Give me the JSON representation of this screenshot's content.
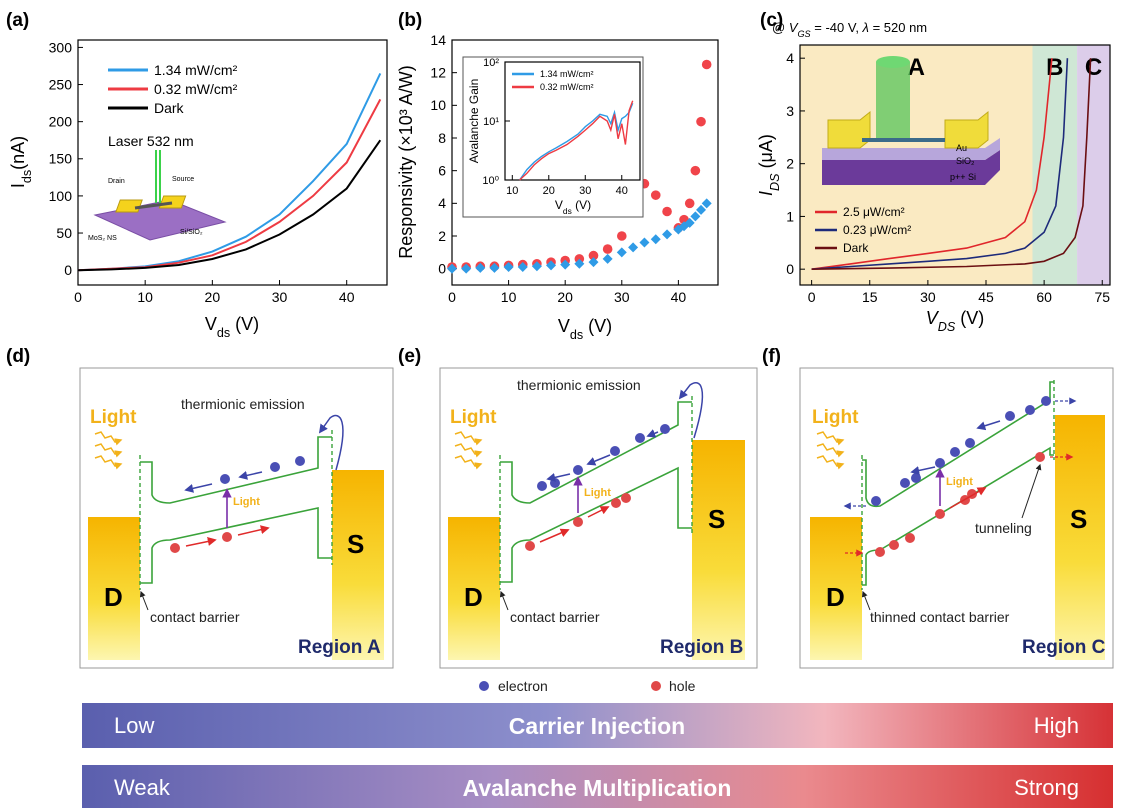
{
  "panel_labels": [
    "(a)",
    "(b)",
    "(c)",
    "(d)",
    "(e)",
    "(f)"
  ],
  "chart_data": [
    {
      "type": "line",
      "xlabel": [
        {
          "text": "V"
        },
        {
          "text": "ds",
          "sub": true
        },
        {
          "text": " (V)"
        }
      ],
      "ylabel": [
        {
          "text": "I"
        },
        {
          "text": "ds",
          "sub": true
        },
        {
          "text": "(nA)"
        }
      ],
      "x": [
        0,
        5,
        10,
        15,
        20,
        25,
        30,
        35,
        40,
        45
      ],
      "series": [
        {
          "name": "1.34 mW/cm²",
          "color": "#2f9be6",
          "values": [
            0,
            2,
            5,
            12,
            25,
            45,
            75,
            120,
            170,
            265
          ]
        },
        {
          "name": "0.32 mW/cm²",
          "color": "#ee3b43",
          "values": [
            0,
            2,
            4,
            10,
            20,
            38,
            65,
            100,
            145,
            230
          ]
        },
        {
          "name": "Dark",
          "color": "#000000",
          "values": [
            0,
            1,
            3,
            7,
            15,
            28,
            48,
            75,
            110,
            175
          ]
        }
      ],
      "xlim": [
        0,
        46
      ],
      "xticks": [
        0,
        10,
        20,
        30,
        40
      ],
      "ylim": [
        -20,
        310
      ],
      "yticks": [
        0,
        50,
        100,
        150,
        200,
        250,
        300
      ],
      "legend": "upper left",
      "device_labels": {
        "laser": "Laser 532 nm",
        "drain": "Drain",
        "source": "Source",
        "channel": "MoS₂ NS",
        "substrate": "Si/SiO₂"
      }
    },
    {
      "type": "scatter",
      "xlabel": [
        {
          "text": "V"
        },
        {
          "text": "ds",
          "sub": true
        },
        {
          "text": " (V)"
        }
      ],
      "ylabel": [
        {
          "text": "Responsivity (×10³ A/W)"
        }
      ],
      "x": [
        0,
        2.5,
        5,
        7.5,
        10,
        12.5,
        15,
        17.5,
        20,
        22.5,
        25,
        27.5,
        30,
        32,
        34,
        36,
        38,
        40,
        41,
        42,
        43,
        44,
        45
      ],
      "series": [
        {
          "color": "#f0444a",
          "marker": "circle",
          "values": [
            0.1,
            0.1,
            0.15,
            0.15,
            0.2,
            0.25,
            0.3,
            0.4,
            0.5,
            0.6,
            0.8,
            1.2,
            2.0,
            4.2,
            5.2,
            4.5,
            3.5,
            2.5,
            3,
            4,
            6,
            9,
            12.5
          ]
        },
        {
          "color": "#2f9be6",
          "marker": "diamond",
          "values": [
            0,
            0,
            0.05,
            0.05,
            0.1,
            0.1,
            0.15,
            0.2,
            0.25,
            0.3,
            0.4,
            0.6,
            1.0,
            1.3,
            1.6,
            1.8,
            2.1,
            2.4,
            2.6,
            2.8,
            3.2,
            3.6,
            4
          ]
        }
      ],
      "xlim": [
        0,
        47
      ],
      "xticks": [
        0,
        10,
        20,
        30,
        40
      ],
      "ylim": [
        -1,
        14
      ],
      "yticks": [
        0,
        2,
        4,
        6,
        8,
        10,
        12,
        14
      ],
      "inset": {
        "type": "line",
        "xlabel": [
          {
            "text": "V"
          },
          {
            "text": "ds",
            "sub": true
          },
          {
            "text": " (V)"
          }
        ],
        "ylabel": [
          {
            "text": "Avalanche Gain"
          }
        ],
        "x": [
          12,
          14,
          16,
          18,
          20,
          22,
          25,
          28,
          30,
          32,
          34,
          36,
          37,
          38,
          39,
          40,
          41,
          42,
          43
        ],
        "series": [
          {
            "name": "1.34 mW/cm²",
            "color": "#2f9be6",
            "values": [
              1,
              1.5,
              2,
              2.5,
              3,
              3.5,
              4.5,
              6,
              8,
              10,
              13,
              12,
              9,
              14,
              7,
              11,
              12,
              14,
              20
            ]
          },
          {
            "name": "0.32 mW/cm²",
            "color": "#ee3b43",
            "values": [
              1,
              1.3,
              1.8,
              2.3,
              2.8,
              3.2,
              4,
              5.5,
              7,
              9,
              12,
              10,
              7,
              13,
              5,
              9,
              4,
              15,
              22
            ]
          }
        ],
        "log_y": true,
        "xlim": [
          8,
          45
        ],
        "xticks": [
          10,
          20,
          30,
          40
        ],
        "ylim": [
          1,
          100
        ],
        "yticks": [
          {
            "value": 1,
            "label": "10⁰"
          },
          {
            "value": 10,
            "label": "10¹"
          },
          {
            "value": 100,
            "label": "10²"
          }
        ],
        "legend": "upper left"
      }
    },
    {
      "type": "line",
      "title": [
        {
          "text": "@ "
        },
        {
          "text": "V",
          "italic": true
        },
        {
          "text": "GS",
          "sub": true,
          "italic": true
        },
        {
          "text": " = -40 V, "
        },
        {
          "text": "λ",
          "italic": true
        },
        {
          "text": " = 520 nm"
        }
      ],
      "xlabel": [
        {
          "text": "V",
          "italic": true
        },
        {
          "text": "DS",
          "sub": true,
          "italic": true
        },
        {
          "text": " (V)"
        }
      ],
      "ylabel": [
        {
          "text": "I",
          "italic": true
        },
        {
          "text": "DS",
          "sub": true,
          "italic": true
        },
        {
          "text": " (μA)"
        }
      ],
      "regions": [
        {
          "label": "A",
          "range": [
            -3,
            57
          ],
          "color": "#faeac2"
        },
        {
          "label": "B",
          "range": [
            57,
            68.5
          ],
          "color": "#cfe7d5"
        },
        {
          "label": "C",
          "range": [
            68.5,
            77
          ],
          "color": "#dccdea"
        }
      ],
      "series": [
        {
          "name": "2.5 μW/cm²",
          "color": "#e0262b",
          "x": [
            0,
            10,
            20,
            30,
            40,
            50,
            55,
            58,
            60,
            62
          ],
          "values": [
            0,
            0.1,
            0.2,
            0.3,
            0.4,
            0.6,
            0.9,
            1.5,
            2.5,
            4
          ]
        },
        {
          "name": "0.23 μW/cm²",
          "color": "#1d2a7a",
          "x": [
            0,
            10,
            20,
            30,
            40,
            50,
            55,
            60,
            63,
            65,
            66
          ],
          "values": [
            0,
            0.05,
            0.1,
            0.15,
            0.2,
            0.3,
            0.4,
            0.7,
            1.2,
            2.5,
            4
          ]
        },
        {
          "name": "Dark",
          "color": "#6b0f12",
          "x": [
            0,
            20,
            40,
            55,
            60,
            65,
            68,
            70,
            71,
            72
          ],
          "values": [
            0,
            0.02,
            0.05,
            0.1,
            0.15,
            0.3,
            0.6,
            1.2,
            2.5,
            4
          ]
        }
      ],
      "xlim": [
        -3,
        77
      ],
      "xticks": [
        0,
        15,
        30,
        45,
        60,
        75
      ],
      "ylim": [
        -0.3,
        4.25
      ],
      "yticks": [
        0,
        1,
        2,
        3,
        4
      ],
      "legend": "lower left",
      "device_labels": {
        "electrode": "Au",
        "oxide": "SiO₂",
        "substrate": "p++ Si"
      }
    }
  ],
  "diagrams": [
    {
      "light": "Light",
      "emission": "thermionic emission",
      "small_light": "Light",
      "drain": "D",
      "source": "S",
      "barrier": "contact barrier",
      "region": "Region A"
    },
    {
      "light": "Light",
      "emission": "thermionic emission",
      "small_light": "Light",
      "drain": "D",
      "source": "S",
      "barrier": "contact barrier",
      "region": "Region B"
    },
    {
      "light": "Light",
      "small_light": "Light",
      "drain": "D",
      "source": "S",
      "tunneling": "tunneling",
      "barrier": "thinned contact barrier",
      "region": "Region C"
    }
  ],
  "carriers": {
    "electron": "electron",
    "hole": "hole"
  },
  "scales": [
    {
      "low": "Low",
      "title": "Carrier Injection",
      "high": "High"
    },
    {
      "low": "Weak",
      "title": "Avalanche Multiplication",
      "high": "Strong"
    }
  ]
}
